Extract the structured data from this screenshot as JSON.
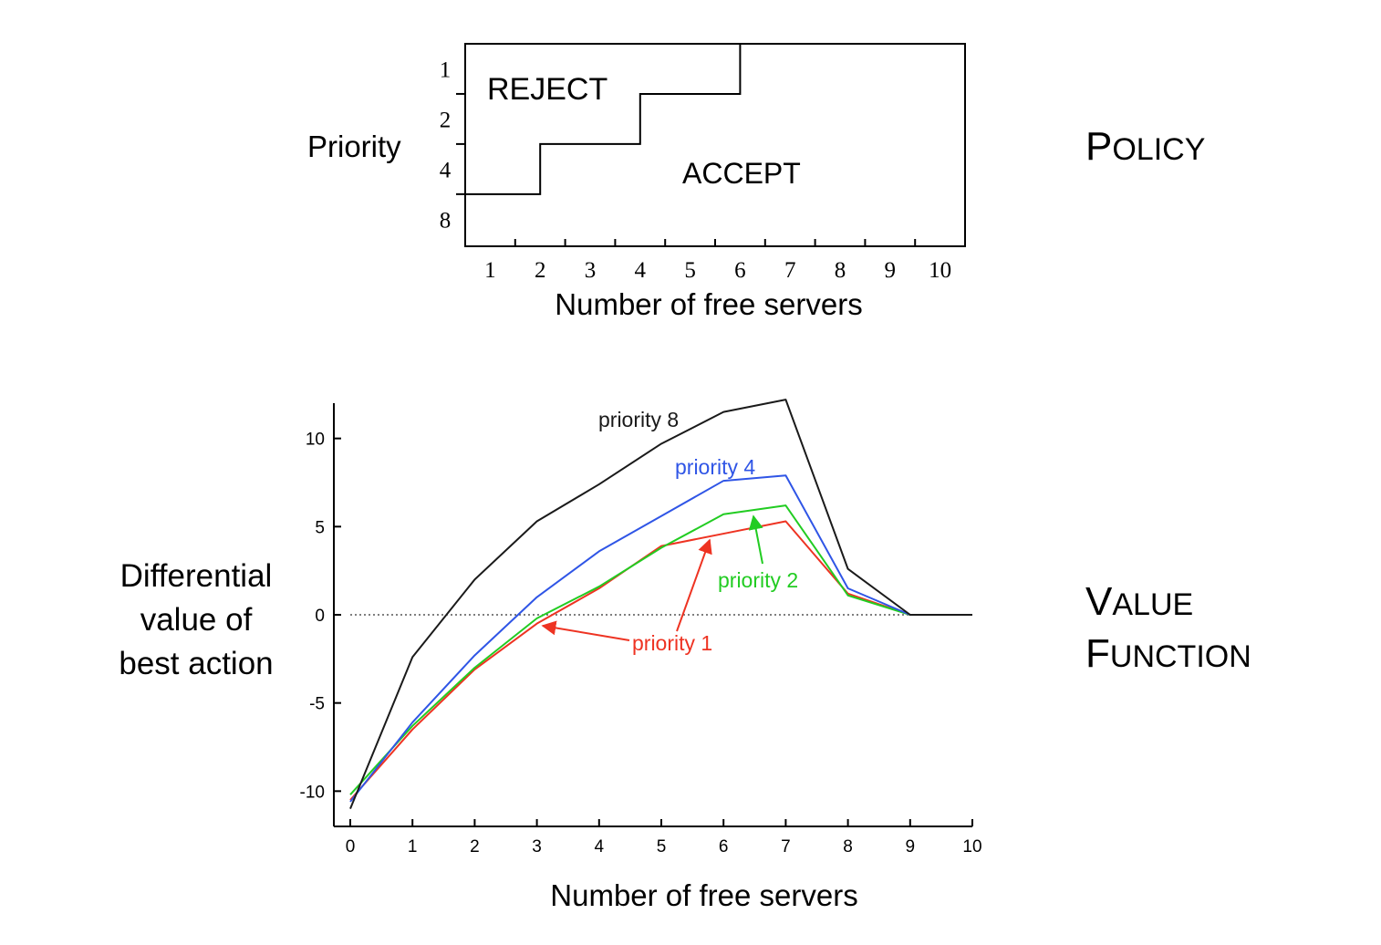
{
  "chart_data": [
    {
      "type": "step",
      "panel_label_first": "P",
      "panel_label_rest": "OLICY",
      "ylabel": "Priority",
      "xlabel": "Number of free servers",
      "x_ticks": [
        "1",
        "2",
        "3",
        "4",
        "5",
        "6",
        "7",
        "8",
        "9",
        "10"
      ],
      "y_ticks": [
        "1",
        "2",
        "4",
        "8"
      ],
      "region_reject": "REJECT",
      "region_accept": "ACCEPT",
      "boundary": [
        {
          "priority": "1",
          "accept_from_servers": 6
        },
        {
          "priority": "2",
          "accept_from_servers": 4
        },
        {
          "priority": "4",
          "accept_from_servers": 2
        },
        {
          "priority": "8",
          "accept_from_servers": 1
        }
      ]
    },
    {
      "type": "line",
      "panel_label_line1_first": "V",
      "panel_label_line1_rest": "ALUE",
      "panel_label_line2_first": "F",
      "panel_label_line2_rest": "UNCTION",
      "ylabel_lines": [
        "Differential",
        "value of",
        "best action"
      ],
      "xlabel": "Number of free servers",
      "x": [
        0,
        1,
        2,
        3,
        4,
        5,
        6,
        7,
        8,
        9,
        10
      ],
      "xlim": [
        0,
        10
      ],
      "ylim": [
        -12,
        12
      ],
      "y_ticks": [
        {
          "value": 10,
          "label": "10"
        },
        {
          "value": 5,
          "label": "5"
        },
        {
          "value": 0,
          "label": "0"
        },
        {
          "value": -5,
          "label": "-5"
        },
        {
          "value": -10,
          "label": "-10"
        }
      ],
      "series": [
        {
          "name": "priority 8",
          "color": "#1a1a1a",
          "values": [
            -11.0,
            -2.4,
            2.0,
            5.3,
            7.4,
            9.7,
            11.5,
            12.2,
            2.6,
            0.0,
            0.0
          ]
        },
        {
          "name": "priority 4",
          "color": "#2f55e6",
          "values": [
            -10.6,
            -6.1,
            -2.3,
            1.0,
            3.6,
            5.6,
            7.6,
            7.9,
            1.5,
            0.0,
            0.0
          ]
        },
        {
          "name": "priority 2",
          "color": "#22cc22",
          "values": [
            -10.2,
            -6.3,
            -3.0,
            -0.2,
            1.6,
            3.8,
            5.7,
            6.2,
            1.1,
            0.0,
            0.0
          ]
        },
        {
          "name": "priority 1",
          "color": "#ee3322",
          "values": [
            -10.5,
            -6.5,
            -3.1,
            -0.5,
            1.5,
            3.9,
            4.6,
            5.3,
            1.2,
            0.0,
            0.0
          ]
        }
      ]
    }
  ]
}
